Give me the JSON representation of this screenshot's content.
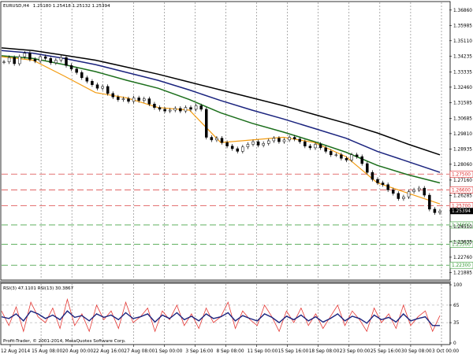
{
  "main_chart": {
    "symbol": "EURUSD,H4",
    "ohlc": "1.25180 1.25418 1.25132 1.25394",
    "price_scale": [
      "1.36860",
      "1.35985",
      "1.35110",
      "1.34235",
      "1.33335",
      "1.32460",
      "1.31585",
      "1.30685",
      "1.29810",
      "1.28935",
      "1.28060",
      "1.27160",
      "1.26285",
      "1.25410",
      "1.24510",
      "1.23635",
      "1.22760",
      "1.21885"
    ],
    "current_price": "1.25394",
    "levels": [
      {
        "label": "1.27500",
        "color": "#e0282a",
        "line": "#e06060"
      },
      {
        "label": "1.26600",
        "color": "#e0282a",
        "line": "#e06060"
      },
      {
        "label": "1.25700",
        "color": "#e0282a",
        "line": "#e06060"
      },
      {
        "label": "1.24600",
        "color": "#2f9a2f",
        "line": "#4aa54a"
      },
      {
        "label": "1.23500",
        "color": "#2f9a2f",
        "line": "#4aa54a"
      },
      {
        "label": "1.22300",
        "color": "#2f9a2f",
        "line": "#4aa54a"
      }
    ]
  },
  "chart_data": {
    "type": "line",
    "series": [
      {
        "values": [
          1.347,
          1.3455,
          1.3428,
          1.34,
          1.336,
          1.332,
          1.3275,
          1.323,
          1.3185,
          1.314,
          1.309,
          1.304,
          1.2985,
          1.292,
          1.286
        ],
        "color": "#000000"
      },
      {
        "values": [
          1.3455,
          1.344,
          1.341,
          1.3375,
          1.333,
          1.3285,
          1.323,
          1.317,
          1.3115,
          1.3065,
          1.301,
          1.2955,
          1.288,
          1.282,
          1.276
        ],
        "color": "#1a237e"
      },
      {
        "values": [
          1.3425,
          1.341,
          1.3375,
          1.3335,
          1.3285,
          1.324,
          1.3175,
          1.31,
          1.304,
          1.299,
          1.2935,
          1.2875,
          1.28,
          1.2745,
          1.27
        ],
        "color": "#1b6e1b"
      },
      {
        "values": [
          1.342,
          1.34,
          1.331,
          1.3215,
          1.3185,
          1.313,
          1.3115,
          1.293,
          1.2945,
          1.296,
          1.293,
          1.285,
          1.27,
          1.264,
          1.258
        ],
        "color": "#f39c12"
      }
    ],
    "rsi": {
      "legend": "RSI(3) 47.1101  RSI(13) 30.3867",
      "scale": [
        "100",
        "65",
        "35",
        "0"
      ],
      "fast": [
        55,
        30,
        62,
        20,
        70,
        45,
        35,
        60,
        25,
        75,
        30,
        50,
        20,
        65,
        40,
        55,
        25,
        70,
        35,
        45,
        60,
        20,
        55,
        40,
        65,
        30,
        50,
        25,
        60,
        35,
        45,
        70,
        25,
        55,
        40,
        30,
        65,
        45,
        20,
        55,
        35,
        60,
        30,
        50,
        25,
        45,
        65,
        30,
        55,
        40,
        20,
        60,
        35,
        50,
        25,
        65,
        30,
        45,
        55,
        20,
        47
      ],
      "slow": [
        45,
        42,
        50,
        38,
        55,
        50,
        42,
        48,
        40,
        55,
        44,
        47,
        38,
        50,
        44,
        48,
        40,
        52,
        42,
        45,
        50,
        36,
        48,
        42,
        52,
        40,
        46,
        38,
        50,
        42,
        45,
        52,
        38,
        47,
        42,
        38,
        50,
        44,
        35,
        46,
        40,
        48,
        38,
        45,
        36,
        42,
        50,
        38,
        46,
        42,
        34,
        48,
        40,
        44,
        36,
        50,
        38,
        42,
        45,
        30,
        30
      ],
      "fast_color": "#e53935",
      "slow_color": "#1a237e"
    },
    "x_ticks": [
      "12 Aug 2014",
      "15 Aug 08:00",
      "20 Aug 00:00",
      "22 Aug 16:00",
      "27 Aug 08:00",
      "1 Sep 00:00",
      "3 Sep 16:00",
      "8 Sep 08:00",
      "11 Sep 00:00",
      "15 Sep 16:00",
      "18 Sep 08:00",
      "23 Sep 00:00",
      "25 Sep 16:00",
      "30 Sep 08:00",
      "3 Oct 00:00"
    ],
    "candles": [
      1.339,
      1.3415,
      1.338,
      1.342,
      1.344,
      1.3405,
      1.3395,
      1.342,
      1.341,
      1.3385,
      1.34,
      1.3415,
      1.337,
      1.335,
      1.333,
      1.33,
      1.328,
      1.326,
      1.324,
      1.325,
      1.321,
      1.319,
      1.3175,
      1.318,
      1.3165,
      1.3185,
      1.317,
      1.318,
      1.315,
      1.313,
      1.312,
      1.311,
      1.3115,
      1.3125,
      1.311,
      1.313,
      1.312,
      1.314,
      1.312,
      1.296,
      1.2945,
      1.2955,
      1.293,
      1.291,
      1.2895,
      1.288,
      1.2905,
      1.292,
      1.2935,
      1.2915,
      1.2925,
      1.294,
      1.2955,
      1.2935,
      1.2945,
      1.296,
      1.295,
      1.2935,
      1.291,
      1.29,
      1.292,
      1.29,
      1.288,
      1.286,
      1.286,
      1.284,
      1.283,
      1.286,
      1.285,
      1.281,
      1.276,
      1.272,
      1.27,
      1.269,
      1.266,
      1.264,
      1.261,
      1.262,
      1.265,
      1.266,
      1.267,
      1.263,
      1.255,
      1.253,
      1.2539
    ]
  },
  "watermark": "Profit-Trader, © 2001-2014, MetaQuotes Software Corp."
}
